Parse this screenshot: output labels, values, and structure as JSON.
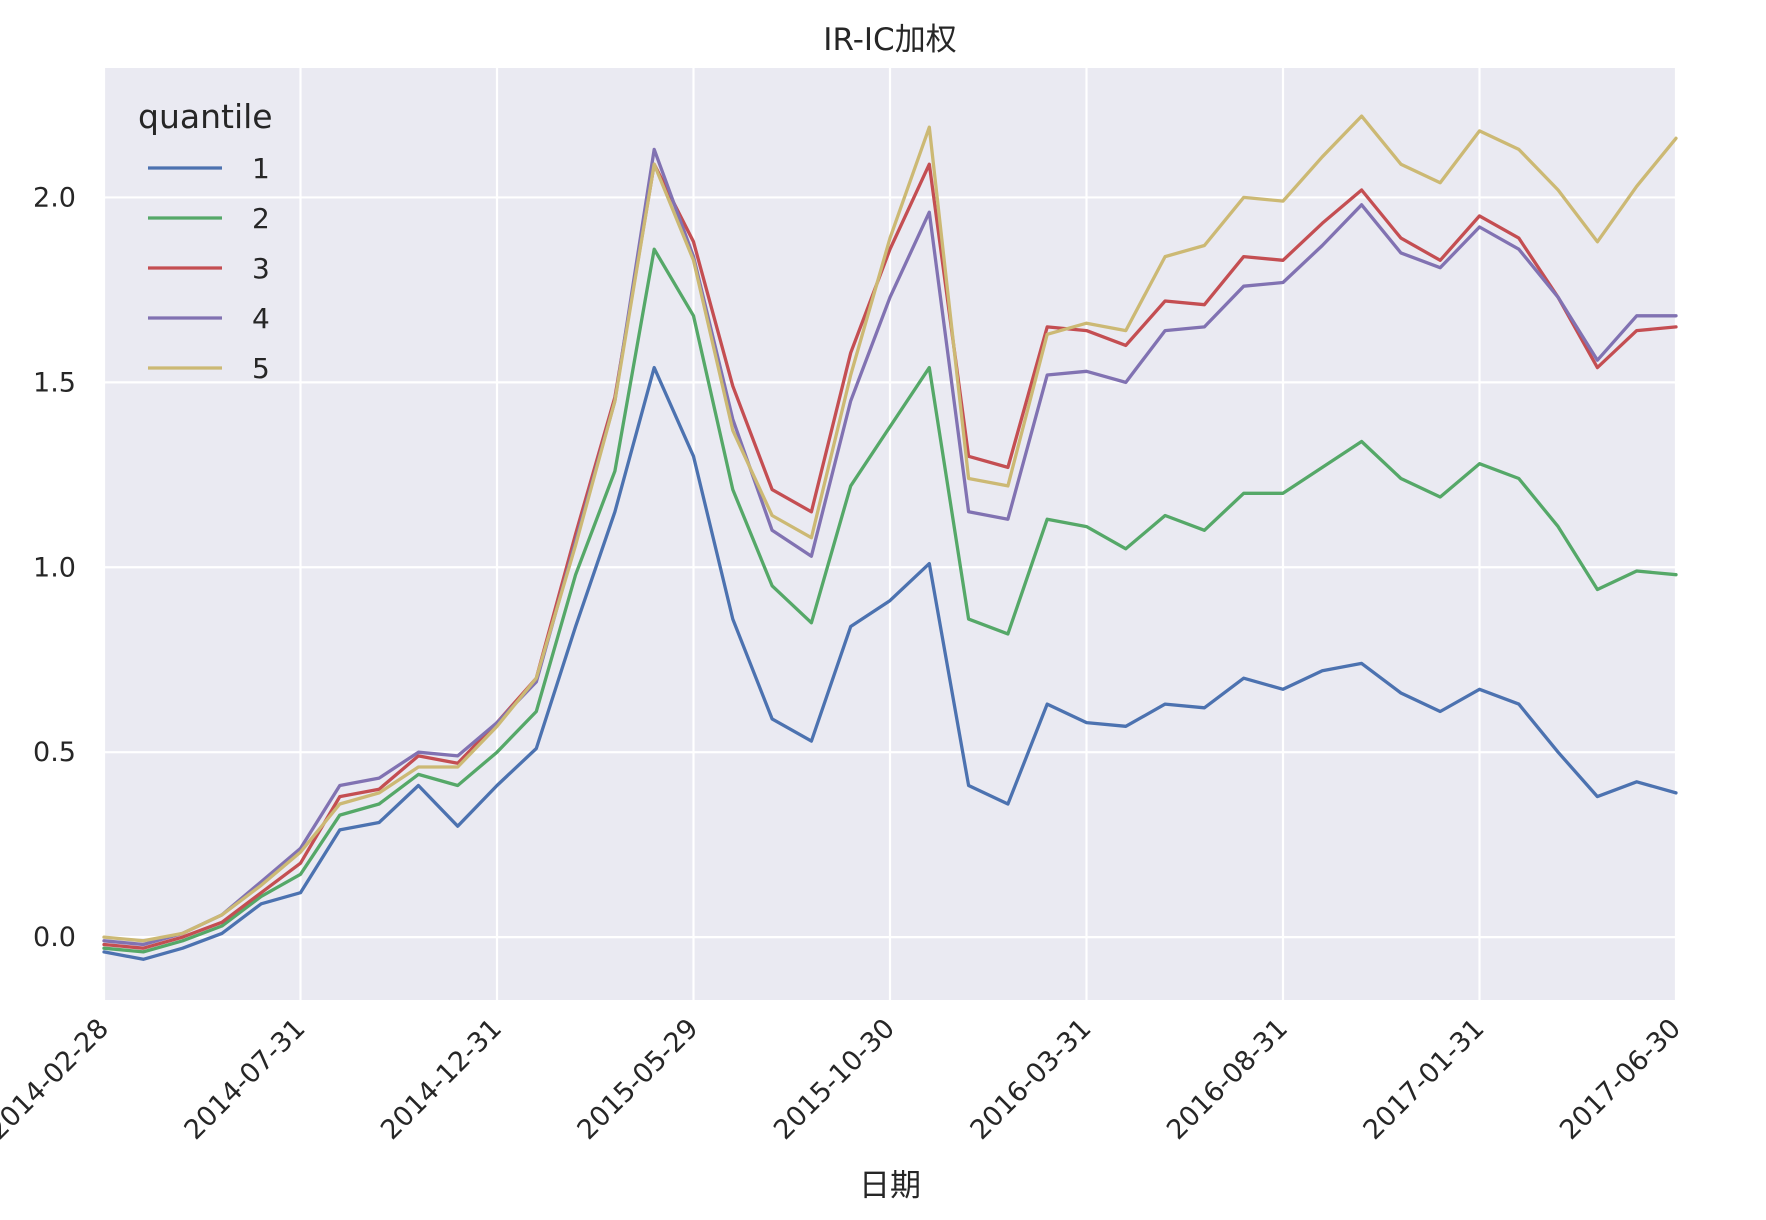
{
  "chart_data": {
    "type": "line",
    "title": "IR-IC加权",
    "xlabel": "日期",
    "ylabel": "",
    "ylim": [
      -0.17,
      2.35
    ],
    "yticks": [
      "0.0",
      "0.5",
      "1.0",
      "1.5",
      "2.0"
    ],
    "ytick_values": [
      0.0,
      0.5,
      1.0,
      1.5,
      2.0
    ],
    "xtick_labels": [
      "2014-02-28",
      "2014-07-31",
      "2014-12-31",
      "2015-05-29",
      "2015-10-30",
      "2016-03-31",
      "2016-08-31",
      "2017-01-31",
      "2017-06-30"
    ],
    "xtick_index": [
      0,
      5,
      10,
      15,
      20,
      25,
      30,
      35,
      40
    ],
    "x_count": 41,
    "grid": true,
    "legend": {
      "title": "quantile",
      "position": "top-left"
    },
    "series": [
      {
        "name": "1",
        "color": "#4c72b0",
        "values": [
          -0.04,
          -0.06,
          -0.03,
          0.01,
          0.09,
          0.12,
          0.29,
          0.31,
          0.41,
          0.3,
          0.41,
          0.51,
          0.84,
          1.15,
          1.54,
          1.3,
          0.86,
          0.59,
          0.53,
          0.84,
          0.91,
          1.01,
          0.41,
          0.36,
          0.63,
          0.58,
          0.57,
          0.63,
          0.62,
          0.7,
          0.67,
          0.72,
          0.74,
          0.66,
          0.61,
          0.67,
          0.63,
          0.5,
          0.38,
          0.42,
          0.39
        ]
      },
      {
        "name": "2",
        "color": "#55a868",
        "values": [
          -0.03,
          -0.04,
          -0.01,
          0.03,
          0.11,
          0.17,
          0.33,
          0.36,
          0.44,
          0.41,
          0.5,
          0.61,
          0.98,
          1.26,
          1.86,
          1.68,
          1.21,
          0.95,
          0.85,
          1.22,
          1.38,
          1.54,
          0.86,
          0.82,
          1.13,
          1.11,
          1.05,
          1.14,
          1.1,
          1.2,
          1.2,
          1.27,
          1.34,
          1.24,
          1.19,
          1.28,
          1.24,
          1.11,
          0.94,
          0.99,
          0.98
        ]
      },
      {
        "name": "3",
        "color": "#c44e52",
        "values": [
          -0.02,
          -0.03,
          0.0,
          0.04,
          0.12,
          0.2,
          0.38,
          0.4,
          0.49,
          0.47,
          0.58,
          0.7,
          1.09,
          1.46,
          2.09,
          1.88,
          1.49,
          1.21,
          1.15,
          1.58,
          1.86,
          2.09,
          1.3,
          1.27,
          1.65,
          1.64,
          1.6,
          1.72,
          1.71,
          1.84,
          1.83,
          1.93,
          2.02,
          1.89,
          1.83,
          1.95,
          1.89,
          1.73,
          1.54,
          1.64,
          1.65
        ]
      },
      {
        "name": "4",
        "color": "#8172b2",
        "values": [
          -0.01,
          -0.02,
          0.01,
          0.06,
          0.15,
          0.24,
          0.41,
          0.43,
          0.5,
          0.49,
          0.58,
          0.69,
          1.07,
          1.45,
          2.13,
          1.84,
          1.4,
          1.1,
          1.03,
          1.45,
          1.73,
          1.96,
          1.15,
          1.13,
          1.52,
          1.53,
          1.5,
          1.64,
          1.65,
          1.76,
          1.77,
          1.87,
          1.98,
          1.85,
          1.81,
          1.92,
          1.86,
          1.73,
          1.56,
          1.68,
          1.68
        ]
      },
      {
        "name": "5",
        "color": "#ccb974",
        "values": [
          0.0,
          -0.01,
          0.01,
          0.06,
          0.14,
          0.23,
          0.36,
          0.39,
          0.46,
          0.46,
          0.57,
          0.7,
          1.06,
          1.45,
          2.09,
          1.83,
          1.37,
          1.14,
          1.08,
          1.52,
          1.89,
          2.19,
          1.24,
          1.22,
          1.63,
          1.66,
          1.64,
          1.84,
          1.87,
          2.0,
          1.99,
          2.11,
          2.22,
          2.09,
          2.04,
          2.18,
          2.13,
          2.02,
          1.88,
          2.03,
          2.16
        ]
      }
    ]
  }
}
